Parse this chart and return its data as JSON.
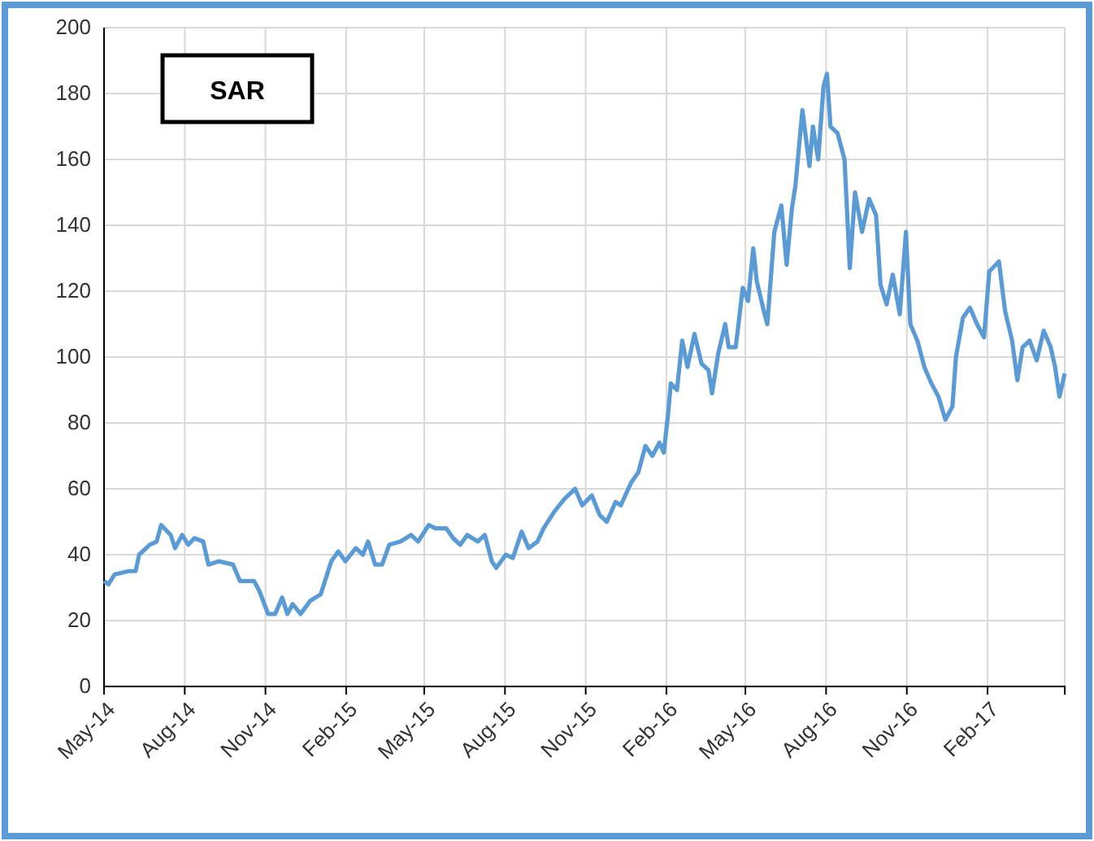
{
  "chart_data": {
    "type": "line",
    "title": "SAR",
    "xlim": [
      "2014-05-01",
      "2017-04-30"
    ],
    "xticks": [
      {
        "value": "2014-05-01",
        "label": "May-14"
      },
      {
        "value": "2014-08-01",
        "label": "Aug-14"
      },
      {
        "value": "2014-11-01",
        "label": "Nov-14"
      },
      {
        "value": "2015-02-01",
        "label": "Feb-15"
      },
      {
        "value": "2015-05-01",
        "label": "May-15"
      },
      {
        "value": "2015-08-01",
        "label": "Aug-15"
      },
      {
        "value": "2015-11-01",
        "label": "Nov-15"
      },
      {
        "value": "2016-02-01",
        "label": "Feb-16"
      },
      {
        "value": "2016-05-01",
        "label": "May-16"
      },
      {
        "value": "2016-08-01",
        "label": "Aug-16"
      },
      {
        "value": "2016-11-01",
        "label": "Nov-16"
      },
      {
        "value": "2017-02-01",
        "label": "Feb-17"
      }
    ],
    "ylim": [
      0,
      200
    ],
    "yticks": [
      0,
      20,
      40,
      60,
      80,
      100,
      120,
      140,
      160,
      180,
      200
    ],
    "grid": true,
    "x": [
      "2014-05-01",
      "2014-05-06",
      "2014-05-13",
      "2014-05-29",
      "2014-06-06",
      "2014-06-10",
      "2014-06-22",
      "2014-06-30",
      "2014-07-05",
      "2014-07-16",
      "2014-07-21",
      "2014-07-29",
      "2014-08-05",
      "2014-08-12",
      "2014-08-22",
      "2014-08-28",
      "2014-09-09",
      "2014-09-25",
      "2014-10-03",
      "2014-10-19",
      "2014-10-25",
      "2014-11-04",
      "2014-11-12",
      "2014-11-20",
      "2014-11-26",
      "2014-12-02",
      "2014-12-11",
      "2014-12-22",
      "2015-01-03",
      "2015-01-15",
      "2015-01-23",
      "2015-01-31",
      "2015-02-12",
      "2015-02-20",
      "2015-02-26",
      "2015-03-06",
      "2015-03-14",
      "2015-03-22",
      "2015-04-04",
      "2015-04-16",
      "2015-04-24",
      "2015-05-06",
      "2015-05-14",
      "2015-05-26",
      "2015-06-03",
      "2015-06-11",
      "2015-06-19",
      "2015-07-01",
      "2015-07-09",
      "2015-07-17",
      "2015-07-22",
      "2015-08-02",
      "2015-08-10",
      "2015-08-20",
      "2015-08-28",
      "2015-09-07",
      "2015-09-14",
      "2015-09-26",
      "2015-10-08",
      "2015-10-20",
      "2015-10-28",
      "2015-11-08",
      "2015-11-17",
      "2015-11-25",
      "2015-12-05",
      "2015-12-11",
      "2015-12-23",
      "2015-12-31",
      "2016-01-08",
      "2016-01-16",
      "2016-01-24",
      "2016-01-29",
      "2016-02-03",
      "2016-02-06",
      "2016-02-13",
      "2016-02-19",
      "2016-02-25",
      "2016-03-04",
      "2016-03-12",
      "2016-03-20",
      "2016-03-24",
      "2016-03-31",
      "2016-04-08",
      "2016-04-12",
      "2016-04-20",
      "2016-04-28",
      "2016-05-04",
      "2016-05-10",
      "2016-05-14",
      "2016-05-22",
      "2016-05-26",
      "2016-06-03",
      "2016-06-11",
      "2016-06-17",
      "2016-06-23",
      "2016-06-27",
      "2016-07-05",
      "2016-07-13",
      "2016-07-17",
      "2016-07-23",
      "2016-07-29",
      "2016-08-02",
      "2016-08-06",
      "2016-08-14",
      "2016-08-22",
      "2016-08-28",
      "2016-09-03",
      "2016-09-11",
      "2016-09-19",
      "2016-09-27",
      "2016-10-02",
      "2016-10-09",
      "2016-10-16",
      "2016-10-24",
      "2016-10-31",
      "2016-11-05",
      "2016-11-13",
      "2016-11-21",
      "2016-11-29",
      "2016-12-07",
      "2016-12-15",
      "2016-12-23",
      "2016-12-27",
      "2017-01-04",
      "2017-01-12",
      "2017-01-20",
      "2017-01-28",
      "2017-02-03",
      "2017-02-14",
      "2017-02-21",
      "2017-03-01",
      "2017-03-07",
      "2017-03-13",
      "2017-03-21",
      "2017-03-29",
      "2017-04-06",
      "2017-04-14",
      "2017-04-19",
      "2017-04-24",
      "2017-04-30"
    ],
    "series": [
      {
        "color": "#5b9bd5",
        "values": [
          32,
          31,
          34,
          35,
          35,
          40,
          43,
          44,
          49,
          46,
          42,
          46,
          43,
          45,
          44,
          37,
          38,
          37,
          32,
          32,
          29,
          22,
          22,
          27,
          22,
          25,
          22,
          26,
          28,
          38,
          41,
          38,
          42,
          40,
          44,
          37,
          37,
          43,
          44,
          46,
          44,
          49,
          48,
          48,
          45,
          43,
          46,
          44,
          46,
          38,
          36,
          40,
          39,
          47,
          42,
          44,
          48,
          53,
          57,
          60,
          55,
          58,
          52,
          50,
          56,
          55,
          62,
          65,
          73,
          70,
          74,
          71,
          83,
          92,
          90,
          105,
          97,
          107,
          98,
          96,
          89,
          101,
          110,
          103,
          103,
          121,
          117,
          133,
          123,
          114,
          110,
          138,
          146,
          128,
          145,
          152,
          175,
          158,
          170,
          160,
          182,
          186,
          170,
          168,
          160,
          127,
          150,
          138,
          148,
          143,
          122,
          116,
          125,
          113,
          138,
          110,
          105,
          97,
          92,
          88,
          81,
          85,
          100,
          112,
          115,
          110,
          106,
          126,
          129,
          114,
          105,
          93,
          103,
          105,
          99,
          108,
          103,
          97,
          88,
          95
        ]
      }
    ]
  }
}
